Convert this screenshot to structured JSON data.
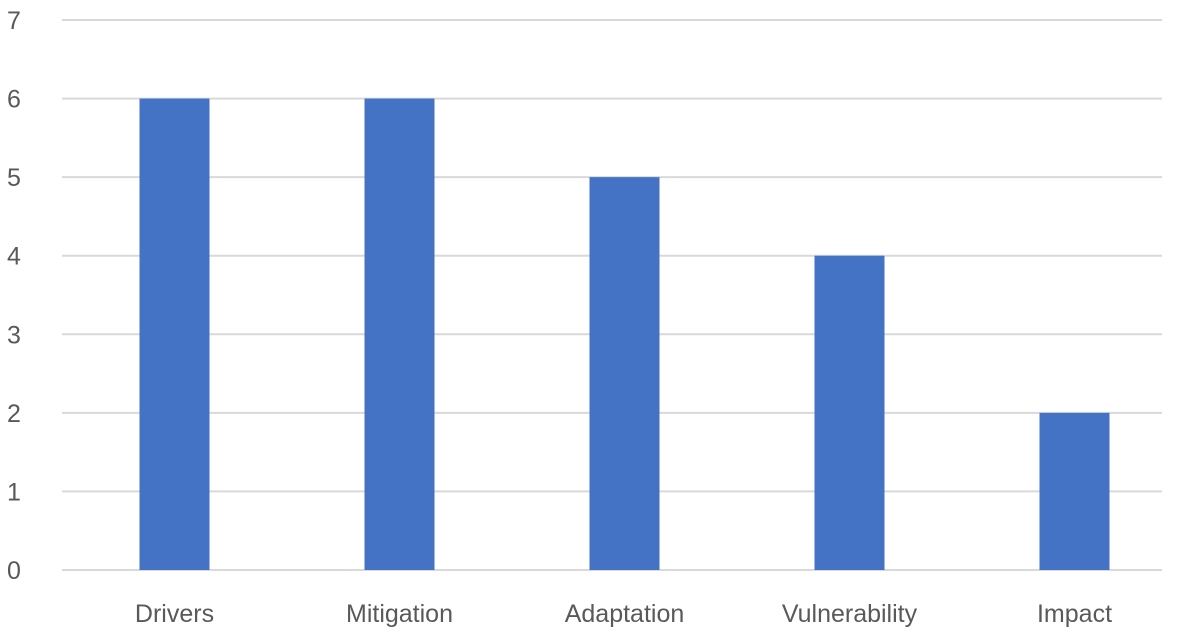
{
  "chart_data": {
    "type": "bar",
    "title": "",
    "xlabel": "",
    "ylabel": "",
    "categories": [
      "Drivers",
      "Mitigation",
      "Adaptation",
      "Vulnerability",
      "Impact"
    ],
    "values": [
      6,
      6,
      5,
      4,
      2
    ],
    "ylim": [
      0,
      7
    ],
    "yticks": [
      "0",
      "1",
      "2",
      "3",
      "4",
      "5",
      "6",
      "7"
    ],
    "grid": true,
    "legend": "none",
    "bar_color": "#4472c4",
    "grid_color": "#d9d9d9",
    "label_color": "#595959"
  }
}
